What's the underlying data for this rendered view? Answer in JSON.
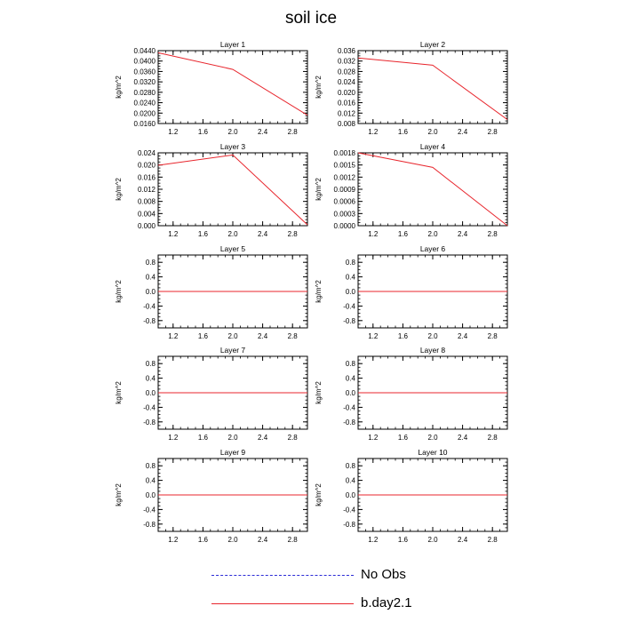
{
  "title": "soil ice",
  "legend": {
    "items": [
      {
        "label": "No Obs",
        "color": "#2b2bd6",
        "style": "dashed"
      },
      {
        "label": "b.day2.1",
        "color": "#e8262d",
        "style": "solid"
      }
    ]
  },
  "chart_data": [
    {
      "type": "line",
      "title": "Layer 1",
      "ylabel": "kg/m^2",
      "xlim": [
        1,
        3
      ],
      "ylim": [
        0.016,
        0.044
      ],
      "xticks": [
        "1.2",
        "1.6",
        "2.0",
        "2.4",
        "2.8"
      ],
      "yticks": [
        "0.0160",
        "0.0200",
        "0.0240",
        "0.0280",
        "0.0320",
        "0.0360",
        "0.0400",
        "0.0440"
      ],
      "series": [
        {
          "color": "#e8262d",
          "x": [
            1,
            2,
            3
          ],
          "values": [
            0.0432,
            0.0368,
            0.0192
          ]
        }
      ]
    },
    {
      "type": "line",
      "title": "Layer 2",
      "ylabel": "kg/m^2",
      "xlim": [
        1,
        3
      ],
      "ylim": [
        0.008,
        0.036
      ],
      "xticks": [
        "1.2",
        "1.6",
        "2.0",
        "2.4",
        "2.8"
      ],
      "yticks": [
        "0.008",
        "0.012",
        "0.016",
        "0.020",
        "0.024",
        "0.028",
        "0.032",
        "0.036"
      ],
      "series": [
        {
          "color": "#e8262d",
          "x": [
            1,
            2,
            3
          ],
          "values": [
            0.0332,
            0.0304,
            0.0095
          ]
        }
      ]
    },
    {
      "type": "line",
      "title": "Layer 3",
      "ylabel": "kg/m^2",
      "xlim": [
        1,
        3
      ],
      "ylim": [
        0,
        0.024
      ],
      "xticks": [
        "1.2",
        "1.6",
        "2.0",
        "2.4",
        "2.8"
      ],
      "yticks": [
        "0.000",
        "0.004",
        "0.008",
        "0.012",
        "0.016",
        "0.020",
        "0.024"
      ],
      "series": [
        {
          "color": "#e8262d",
          "x": [
            1,
            2,
            3
          ],
          "values": [
            0.0199,
            0.0233,
            0.0003
          ]
        }
      ]
    },
    {
      "type": "line",
      "title": "Layer 4",
      "ylabel": "kg/m^2",
      "xlim": [
        1,
        3
      ],
      "ylim": [
        0,
        0.0018
      ],
      "xticks": [
        "1.2",
        "1.6",
        "2.0",
        "2.4",
        "2.8"
      ],
      "yticks": [
        "0.0000",
        "0.0003",
        "0.0006",
        "0.0009",
        "0.0012",
        "0.0015",
        "0.0018"
      ],
      "series": [
        {
          "color": "#e8262d",
          "x": [
            1,
            2,
            3
          ],
          "values": [
            0.0018,
            0.00144,
            0.0
          ]
        }
      ]
    },
    {
      "type": "line",
      "title": "Layer 5",
      "ylabel": "kg/m^2",
      "xlim": [
        1,
        3
      ],
      "ylim": [
        -1,
        1
      ],
      "xticks": [
        "1.2",
        "1.6",
        "2.0",
        "2.4",
        "2.8"
      ],
      "yticks": [
        "-0.8",
        "-0.4",
        "0.0",
        "0.4",
        "0.8"
      ],
      "series": [
        {
          "color": "#e8262d",
          "x": [
            1,
            2,
            3
          ],
          "values": [
            0,
            0,
            0
          ]
        }
      ]
    },
    {
      "type": "line",
      "title": "Layer 6",
      "ylabel": "kg/m^2",
      "xlim": [
        1,
        3
      ],
      "ylim": [
        -1,
        1
      ],
      "xticks": [
        "1.2",
        "1.6",
        "2.0",
        "2.4",
        "2.8"
      ],
      "yticks": [
        "-0.8",
        "-0.4",
        "0.0",
        "0.4",
        "0.8"
      ],
      "series": [
        {
          "color": "#e8262d",
          "x": [
            1,
            2,
            3
          ],
          "values": [
            0,
            0,
            0
          ]
        }
      ]
    },
    {
      "type": "line",
      "title": "Layer 7",
      "ylabel": "kg/m^2",
      "xlim": [
        1,
        3
      ],
      "ylim": [
        -1,
        1
      ],
      "xticks": [
        "1.2",
        "1.6",
        "2.0",
        "2.4",
        "2.8"
      ],
      "yticks": [
        "-0.8",
        "-0.4",
        "0.0",
        "0.4",
        "0.8"
      ],
      "series": [
        {
          "color": "#e8262d",
          "x": [
            1,
            2,
            3
          ],
          "values": [
            0,
            0,
            0
          ]
        }
      ]
    },
    {
      "type": "line",
      "title": "Layer 8",
      "ylabel": "kg/m^2",
      "xlim": [
        1,
        3
      ],
      "ylim": [
        -1,
        1
      ],
      "xticks": [
        "1.2",
        "1.6",
        "2.0",
        "2.4",
        "2.8"
      ],
      "yticks": [
        "-0.8",
        "-0.4",
        "0.0",
        "0.4",
        "0.8"
      ],
      "series": [
        {
          "color": "#e8262d",
          "x": [
            1,
            2,
            3
          ],
          "values": [
            0,
            0,
            0
          ]
        }
      ]
    },
    {
      "type": "line",
      "title": "Layer 9",
      "ylabel": "kg/m^2",
      "xlim": [
        1,
        3
      ],
      "ylim": [
        -1,
        1
      ],
      "xticks": [
        "1.2",
        "1.6",
        "2.0",
        "2.4",
        "2.8"
      ],
      "yticks": [
        "-0.8",
        "-0.4",
        "0.0",
        "0.4",
        "0.8"
      ],
      "series": [
        {
          "color": "#e8262d",
          "x": [
            1,
            2,
            3
          ],
          "values": [
            0,
            0,
            0
          ]
        }
      ]
    },
    {
      "type": "line",
      "title": "Layer 10",
      "ylabel": "kg/m^2",
      "xlim": [
        1,
        3
      ],
      "ylim": [
        -1,
        1
      ],
      "xticks": [
        "1.2",
        "1.6",
        "2.0",
        "2.4",
        "2.8"
      ],
      "yticks": [
        "-0.8",
        "-0.4",
        "0.0",
        "0.4",
        "0.8"
      ],
      "series": [
        {
          "color": "#e8262d",
          "x": [
            1,
            2,
            3
          ],
          "values": [
            0,
            0,
            0
          ]
        }
      ]
    }
  ]
}
